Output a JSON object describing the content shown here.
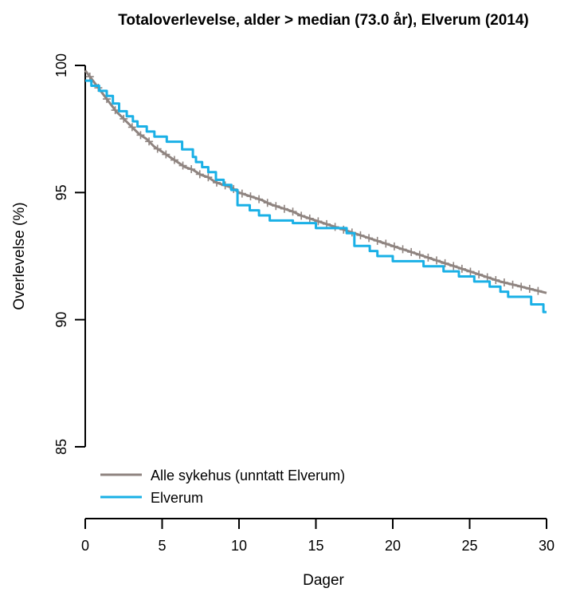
{
  "chart_data": {
    "type": "line",
    "title": "Totaloverlevelse, alder > median (73.0 år), Elverum (2014)",
    "xlabel": "Dager",
    "ylabel": "Overlevelse (%)",
    "xlim": [
      0,
      30
    ],
    "ylim": [
      85,
      100
    ],
    "x_ticks": [
      0,
      5,
      10,
      15,
      20,
      25,
      30
    ],
    "y_ticks": [
      85,
      90,
      95,
      100
    ],
    "x_tick_labels": [
      "0",
      "5",
      "10",
      "15",
      "20",
      "25",
      "30"
    ],
    "y_tick_labels": [
      "85",
      "90",
      "95",
      "100"
    ],
    "grid": false,
    "legend": "bottom-left",
    "series": [
      {
        "name": "Alle sykehus (unntatt Elverum)",
        "color": "#8f8480",
        "censor_marks": true,
        "points": [
          [
            0,
            99.8
          ],
          [
            0.5,
            99.4
          ],
          [
            1,
            99.0
          ],
          [
            1.5,
            98.6
          ],
          [
            2,
            98.2
          ],
          [
            2.5,
            97.9
          ],
          [
            3,
            97.6
          ],
          [
            3.5,
            97.3
          ],
          [
            4,
            97.1
          ],
          [
            4.5,
            96.8
          ],
          [
            5,
            96.6
          ],
          [
            5.5,
            96.4
          ],
          [
            6,
            96.2
          ],
          [
            6.5,
            96.0
          ],
          [
            7,
            95.9
          ],
          [
            7.5,
            95.7
          ],
          [
            8,
            95.6
          ],
          [
            8.5,
            95.4
          ],
          [
            9,
            95.3
          ],
          [
            9.5,
            95.2
          ],
          [
            10,
            95.0
          ],
          [
            10.5,
            94.9
          ],
          [
            11,
            94.8
          ],
          [
            11.5,
            94.7
          ],
          [
            12,
            94.55
          ],
          [
            12.5,
            94.45
          ],
          [
            13,
            94.35
          ],
          [
            13.5,
            94.25
          ],
          [
            14,
            94.1
          ],
          [
            14.5,
            94.0
          ],
          [
            15,
            93.9
          ],
          [
            16,
            93.7
          ],
          [
            17,
            93.5
          ],
          [
            18,
            93.3
          ],
          [
            19,
            93.1
          ],
          [
            20,
            92.9
          ],
          [
            21,
            92.7
          ],
          [
            22,
            92.5
          ],
          [
            23,
            92.3
          ],
          [
            24,
            92.1
          ],
          [
            25,
            91.9
          ],
          [
            26,
            91.7
          ],
          [
            27,
            91.5
          ],
          [
            28,
            91.35
          ],
          [
            29,
            91.2
          ],
          [
            30,
            91.05
          ]
        ]
      },
      {
        "name": "Elverum",
        "color": "#1ab0e6",
        "censor_marks": false,
        "points": [
          [
            0,
            99.4
          ],
          [
            0.4,
            99.4
          ],
          [
            0.4,
            99.2
          ],
          [
            0.9,
            99.2
          ],
          [
            0.9,
            99.0
          ],
          [
            1.4,
            99.0
          ],
          [
            1.4,
            98.8
          ],
          [
            1.8,
            98.8
          ],
          [
            1.8,
            98.5
          ],
          [
            2.2,
            98.5
          ],
          [
            2.2,
            98.2
          ],
          [
            2.7,
            98.2
          ],
          [
            2.7,
            98.0
          ],
          [
            3.1,
            98.0
          ],
          [
            3.1,
            97.8
          ],
          [
            3.4,
            97.8
          ],
          [
            3.4,
            97.6
          ],
          [
            4.0,
            97.6
          ],
          [
            4.0,
            97.4
          ],
          [
            4.5,
            97.4
          ],
          [
            4.5,
            97.2
          ],
          [
            5.3,
            97.2
          ],
          [
            5.3,
            97.0
          ],
          [
            6.3,
            97.0
          ],
          [
            6.3,
            96.7
          ],
          [
            7.0,
            96.7
          ],
          [
            7.0,
            96.4
          ],
          [
            7.2,
            96.4
          ],
          [
            7.2,
            96.2
          ],
          [
            7.6,
            96.2
          ],
          [
            7.6,
            96.0
          ],
          [
            8.0,
            96.0
          ],
          [
            8.0,
            95.8
          ],
          [
            8.5,
            95.8
          ],
          [
            8.5,
            95.5
          ],
          [
            9.0,
            95.5
          ],
          [
            9.0,
            95.3
          ],
          [
            9.5,
            95.3
          ],
          [
            9.5,
            95.1
          ],
          [
            9.9,
            95.1
          ],
          [
            9.9,
            94.5
          ],
          [
            10.7,
            94.5
          ],
          [
            10.7,
            94.3
          ],
          [
            11.3,
            94.3
          ],
          [
            11.3,
            94.1
          ],
          [
            12.0,
            94.1
          ],
          [
            12.0,
            93.9
          ],
          [
            13.5,
            93.9
          ],
          [
            13.5,
            93.8
          ],
          [
            15.0,
            93.8
          ],
          [
            15.0,
            93.6
          ],
          [
            17.0,
            93.6
          ],
          [
            17.0,
            93.4
          ],
          [
            17.5,
            93.4
          ],
          [
            17.5,
            92.9
          ],
          [
            18.5,
            92.9
          ],
          [
            18.5,
            92.7
          ],
          [
            19.0,
            92.7
          ],
          [
            19.0,
            92.5
          ],
          [
            20.0,
            92.5
          ],
          [
            20.0,
            92.3
          ],
          [
            22.0,
            92.3
          ],
          [
            22.0,
            92.1
          ],
          [
            23.3,
            92.1
          ],
          [
            23.3,
            91.9
          ],
          [
            24.3,
            91.9
          ],
          [
            24.3,
            91.7
          ],
          [
            25.3,
            91.7
          ],
          [
            25.3,
            91.5
          ],
          [
            26.3,
            91.5
          ],
          [
            26.3,
            91.3
          ],
          [
            27.0,
            91.3
          ],
          [
            27.0,
            91.1
          ],
          [
            27.5,
            91.1
          ],
          [
            27.5,
            90.9
          ],
          [
            29.0,
            90.9
          ],
          [
            29.0,
            90.6
          ],
          [
            29.8,
            90.6
          ],
          [
            29.8,
            90.3
          ],
          [
            30,
            90.3
          ]
        ]
      }
    ]
  }
}
